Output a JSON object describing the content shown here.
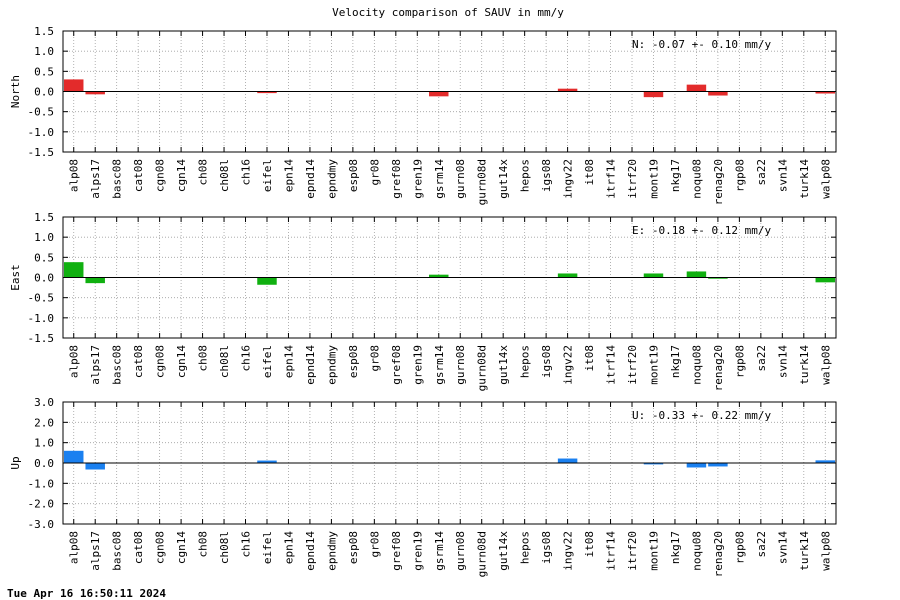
{
  "title": "Velocity comparison of SAUV in mm/y",
  "timestamp": "Tue Apr 16 16:50:11 2024",
  "chart_data": [
    {
      "type": "bar",
      "ylabel": "North",
      "annotation": "N:  -0.07 +-  0.10 mm/y",
      "color": "#e32b2b",
      "ylim": [
        -1.5,
        1.5
      ],
      "yticks": [
        1.5,
        1.0,
        0.5,
        0.0,
        -0.5,
        -1.0,
        -1.5
      ],
      "ytick_labels": [
        "1.5",
        "1.0",
        "0.5",
        "0.0",
        "-0.5",
        "-1.0",
        "-1.5"
      ],
      "grid": true,
      "categories": [
        "alp08",
        "alps17",
        "basc08",
        "cat08",
        "cgn08",
        "cgn14",
        "ch08",
        "ch08l",
        "ch16",
        "eifel",
        "epn14",
        "epnd14",
        "epndmy",
        "esp08",
        "gr08",
        "gref08",
        "gren19",
        "gsrm14",
        "gurn08",
        "gurn08d",
        "gut14x",
        "hepos",
        "igs08",
        "ingv22",
        "it08",
        "itrf14",
        "itrf20",
        "mont19",
        "nkg17",
        "noqu08",
        "renag20",
        "rgp08",
        "sa22",
        "svn14",
        "turk14",
        "walp08"
      ],
      "values": [
        0.3,
        -0.07,
        0,
        0,
        0,
        0,
        0,
        0,
        0,
        -0.04,
        0,
        0,
        0,
        0,
        0,
        0,
        0,
        -0.12,
        0,
        0,
        0,
        0,
        0,
        0.07,
        0,
        0,
        0,
        -0.14,
        0,
        0.17,
        -0.1,
        0,
        0,
        0,
        0,
        -0.05
      ]
    },
    {
      "type": "bar",
      "ylabel": "East",
      "annotation": "E:  -0.18 +-  0.12 mm/y",
      "color": "#10b010",
      "ylim": [
        -1.5,
        1.5
      ],
      "yticks": [
        1.5,
        1.0,
        0.5,
        0.0,
        -0.5,
        -1.0,
        -1.5
      ],
      "ytick_labels": [
        "1.5",
        "1.0",
        "0.5",
        "0.0",
        "-0.5",
        "-1.0",
        "-1.5"
      ],
      "grid": true,
      "categories": [
        "alp08",
        "alps17",
        "basc08",
        "cat08",
        "cgn08",
        "cgn14",
        "ch08",
        "ch08l",
        "ch16",
        "eifel",
        "epn14",
        "epnd14",
        "epndmy",
        "esp08",
        "gr08",
        "gref08",
        "gren19",
        "gsrm14",
        "gurn08",
        "gurn08d",
        "gut14x",
        "hepos",
        "igs08",
        "ingv22",
        "it08",
        "itrf14",
        "itrf20",
        "mont19",
        "nkg17",
        "noqu08",
        "renag20",
        "rgp08",
        "sa22",
        "svn14",
        "turk14",
        "walp08"
      ],
      "values": [
        0.38,
        -0.14,
        0,
        0,
        0,
        0,
        0,
        0,
        0,
        -0.18,
        0,
        0,
        0,
        0,
        0,
        0,
        0,
        0.07,
        0,
        0,
        0,
        0,
        0,
        0.1,
        0,
        0,
        0,
        0.1,
        0,
        0.15,
        -0.03,
        0,
        0,
        0,
        0,
        -0.12
      ]
    },
    {
      "type": "bar",
      "ylabel": "Up",
      "annotation": "U:  -0.33 +-  0.22 mm/y",
      "color": "#1a80f0",
      "ylim": [
        -3.0,
        3.0
      ],
      "yticks": [
        3.0,
        2.0,
        1.0,
        0.0,
        -1.0,
        -2.0,
        -3.0
      ],
      "ytick_labels": [
        "3.0",
        "2.0",
        "1.0",
        "0.0",
        "-1.0",
        "-2.0",
        "-3.0"
      ],
      "grid": true,
      "categories": [
        "alp08",
        "alps17",
        "basc08",
        "cat08",
        "cgn08",
        "cgn14",
        "ch08",
        "ch08l",
        "ch16",
        "eifel",
        "epn14",
        "epnd14",
        "epndmy",
        "esp08",
        "gr08",
        "gref08",
        "gren19",
        "gsrm14",
        "gurn08",
        "gurn08d",
        "gut14x",
        "hepos",
        "igs08",
        "ingv22",
        "it08",
        "itrf14",
        "itrf20",
        "mont19",
        "nkg17",
        "noqu08",
        "renag20",
        "rgp08",
        "sa22",
        "svn14",
        "turk14",
        "walp08"
      ],
      "values": [
        0.6,
        -0.32,
        0,
        0,
        0,
        0,
        0,
        0,
        0,
        0.12,
        0,
        0,
        0,
        0,
        0,
        0,
        0,
        0,
        0,
        0,
        0,
        0,
        0,
        0.22,
        0,
        0,
        0,
        -0.07,
        0,
        -0.22,
        -0.17,
        0,
        0,
        0,
        0,
        0.13
      ]
    }
  ]
}
